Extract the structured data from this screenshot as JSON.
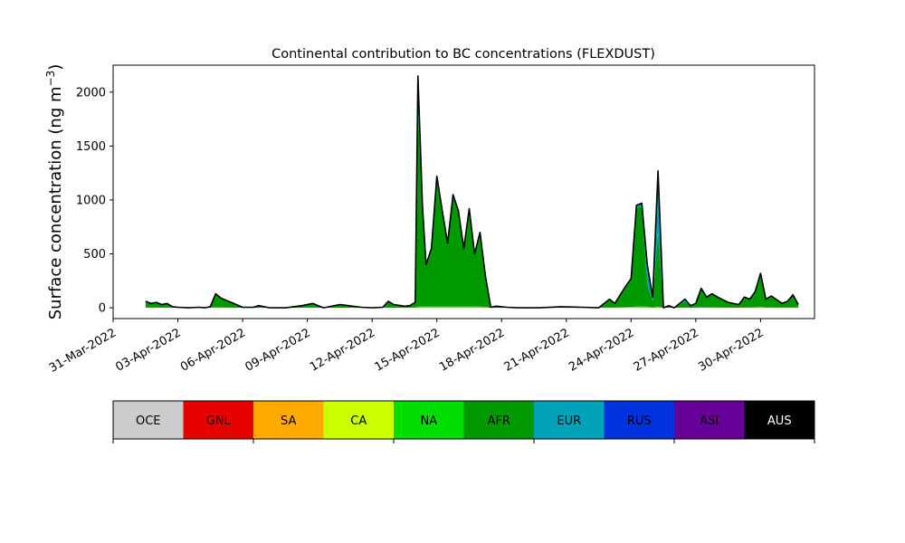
{
  "chart_data": {
    "type": "area",
    "stacked": true,
    "title": "Continental contribution to BC concentrations (FLEXDUST)",
    "ylabel": "Surface concentration (ng m",
    "ylabel_sup": "−3",
    "ylabel_close": ")",
    "xlabel": "",
    "ylim": [
      -100,
      2250
    ],
    "yticks": [
      0,
      500,
      1000,
      1500,
      2000
    ],
    "xlim": [
      "2022-03-31T00:00",
      "2022-05-02T12:00"
    ],
    "xtick_labels": [
      "31-Mar-2022",
      "03-Apr-2022",
      "06-Apr-2022",
      "09-Apr-2022",
      "12-Apr-2022",
      "15-Apr-2022",
      "18-Apr-2022",
      "21-Apr-2022",
      "24-Apr-2022",
      "27-Apr-2022",
      "30-Apr-2022"
    ],
    "grid": false,
    "regions": [
      {
        "code": "OCE",
        "color": "#cccccc",
        "text_color": "#000000"
      },
      {
        "code": "GNL",
        "color": "#e60000",
        "text_color": "#000000"
      },
      {
        "code": "SA",
        "color": "#ffaa00",
        "text_color": "#000000"
      },
      {
        "code": "CA",
        "color": "#ccff00",
        "text_color": "#000000"
      },
      {
        "code": "NA",
        "color": "#00dd00",
        "text_color": "#000000"
      },
      {
        "code": "AFR",
        "color": "#009900",
        "text_color": "#000000"
      },
      {
        "code": "EUR",
        "color": "#00a3b8",
        "text_color": "#000000"
      },
      {
        "code": "RUS",
        "color": "#0033dd",
        "text_color": "#000000"
      },
      {
        "code": "ASI",
        "color": "#660099",
        "text_color": "#000000"
      },
      {
        "code": "AUS",
        "color": "#000000",
        "text_color": "#ffffff"
      }
    ],
    "total": {
      "x": [
        "2022-04-01T12:00",
        "2022-04-01T18:00",
        "2022-04-02T00:00",
        "2022-04-02T06:00",
        "2022-04-02T12:00",
        "2022-04-02T18:00",
        "2022-04-03T00:00",
        "2022-04-03T12:00",
        "2022-04-04T00:00",
        "2022-04-04T06:00",
        "2022-04-04T12:00",
        "2022-04-04T18:00",
        "2022-04-05T00:00",
        "2022-04-06T00:00",
        "2022-04-06T12:00",
        "2022-04-06T18:00",
        "2022-04-07T06:00",
        "2022-04-08T00:00",
        "2022-04-08T18:00",
        "2022-04-09T06:00",
        "2022-04-09T12:00",
        "2022-04-09T18:00",
        "2022-04-10T12:00",
        "2022-04-11T12:00",
        "2022-04-12T00:00",
        "2022-04-12T12:00",
        "2022-04-12T18:00",
        "2022-04-13T00:00",
        "2022-04-13T12:00",
        "2022-04-13T18:00",
        "2022-04-14T00:00",
        "2022-04-14T03:00",
        "2022-04-14T08:00",
        "2022-04-14T12:00",
        "2022-04-14T18:00",
        "2022-04-15T00:00",
        "2022-04-15T06:00",
        "2022-04-15T12:00",
        "2022-04-15T18:00",
        "2022-04-16T00:00",
        "2022-04-16T06:00",
        "2022-04-16T12:00",
        "2022-04-16T18:00",
        "2022-04-17T00:00",
        "2022-04-17T06:00",
        "2022-04-17T12:00",
        "2022-04-17T18:00",
        "2022-04-18T00:00",
        "2022-04-18T06:00",
        "2022-04-18T18:00",
        "2022-04-19T18:00",
        "2022-04-20T18:00",
        "2022-04-21T18:00",
        "2022-04-22T12:00",
        "2022-04-23T00:00",
        "2022-04-23T06:00",
        "2022-04-23T18:00",
        "2022-04-24T00:00",
        "2022-04-24T06:00",
        "2022-04-24T12:00",
        "2022-04-24T18:00",
        "2022-04-25T00:00",
        "2022-04-25T06:00",
        "2022-04-25T12:00",
        "2022-04-25T18:00",
        "2022-04-26T00:00",
        "2022-04-26T12:00",
        "2022-04-26T18:00",
        "2022-04-27T00:00",
        "2022-04-27T06:00",
        "2022-04-27T12:00",
        "2022-04-27T18:00",
        "2022-04-28T00:00",
        "2022-04-28T12:00",
        "2022-04-29T00:00",
        "2022-04-29T06:00",
        "2022-04-29T12:00",
        "2022-04-29T18:00",
        "2022-04-30T00:00",
        "2022-04-30T06:00",
        "2022-04-30T12:00",
        "2022-05-01T00:00",
        "2022-05-01T06:00",
        "2022-05-01T12:00",
        "2022-05-01T18:00"
      ],
      "values": [
        60,
        40,
        50,
        30,
        40,
        10,
        5,
        0,
        5,
        0,
        10,
        130,
        90,
        5,
        5,
        20,
        0,
        0,
        20,
        40,
        20,
        0,
        30,
        5,
        0,
        5,
        60,
        30,
        15,
        20,
        50,
        2150,
        950,
        400,
        550,
        1220,
        900,
        600,
        1050,
        900,
        550,
        920,
        500,
        700,
        300,
        5,
        15,
        10,
        5,
        0,
        0,
        10,
        5,
        0,
        80,
        40,
        200,
        270,
        950,
        970,
        400,
        100,
        1270,
        0,
        20,
        0,
        80,
        20,
        40,
        180,
        100,
        130,
        100,
        50,
        30,
        100,
        80,
        150,
        320,
        80,
        110,
        40,
        60,
        120,
        30
      ]
    },
    "afr_share": [
      0.9,
      0.9,
      0.9,
      0.9,
      0.9,
      0.9,
      0.9,
      0.9,
      0.9,
      0.9,
      0.9,
      0.95,
      0.95,
      0.9,
      0.9,
      0.9,
      0.9,
      0.9,
      0.9,
      0.9,
      0.9,
      0.9,
      0.9,
      0.9,
      0.9,
      0.9,
      0.9,
      0.9,
      0.9,
      0.9,
      0.9,
      0.85,
      0.97,
      0.97,
      0.97,
      0.98,
      0.98,
      0.98,
      0.98,
      0.98,
      0.98,
      0.98,
      0.98,
      0.98,
      0.98,
      0.9,
      0.9,
      0.9,
      0.9,
      0.9,
      0.9,
      0.9,
      0.9,
      0.9,
      0.9,
      0.9,
      0.96,
      0.96,
      0.97,
      0.97,
      0.55,
      0.6,
      0.55,
      0.9,
      0.85,
      0.9,
      0.7,
      0.85,
      0.9,
      0.95,
      0.95,
      0.95,
      0.95,
      0.95,
      0.95,
      0.95,
      0.95,
      0.95,
      0.95,
      0.95,
      0.95,
      0.95,
      0.95,
      0.95,
      0.95
    ]
  }
}
